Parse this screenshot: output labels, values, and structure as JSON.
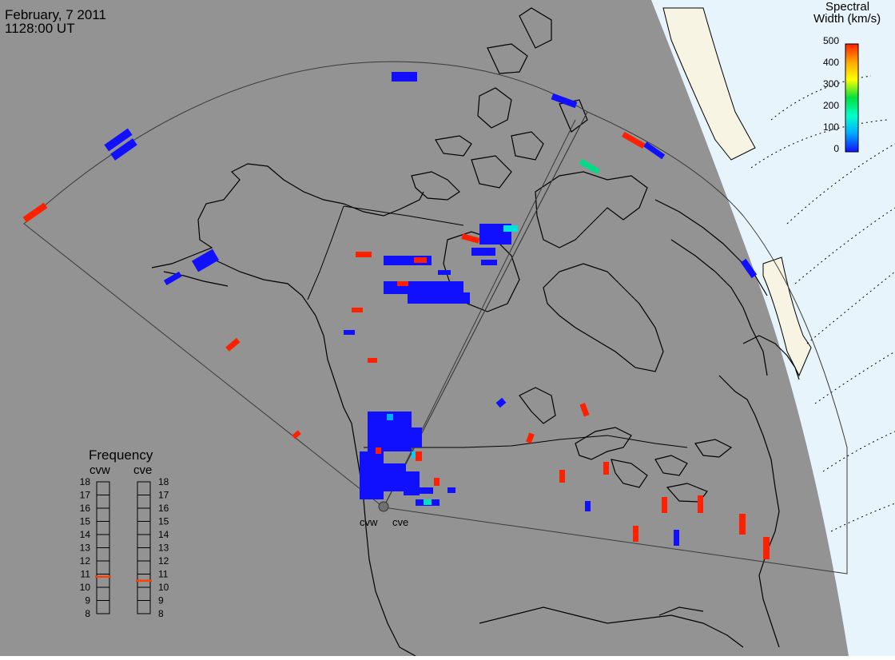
{
  "header": {
    "date": "February, 7 2011",
    "time": "1128:00 UT"
  },
  "colorbar": {
    "title_line1": "Spectral",
    "title_line2": "Width (km/s)",
    "ticks": [
      "500",
      "400",
      "300",
      "200",
      "100",
      "0"
    ],
    "min": 0,
    "max": 500,
    "colors": [
      "#1010ff",
      "#00aaff",
      "#00ffcc",
      "#00e040",
      "#ffff00",
      "#ffaa00",
      "#ff2000"
    ]
  },
  "radars": {
    "west_label": "cvw",
    "east_label": "cve"
  },
  "frequency": {
    "title": "Frequency",
    "west_label": "cvw",
    "east_label": "cve",
    "scale": [
      "18",
      "17",
      "16",
      "15",
      "14",
      "13",
      "12",
      "11",
      "10",
      "9",
      "8"
    ],
    "west_value_mhz": 10.8,
    "east_value_mhz": 10.5,
    "range": [
      8,
      18
    ],
    "marker_color": "#ff4000"
  },
  "colors": {
    "background": "#939393",
    "daylight": "#e8f4fb",
    "land_lit": "#f7f4e4",
    "outline": "#000000",
    "low_width": "#1010ff",
    "high_width": "#ff2000"
  }
}
